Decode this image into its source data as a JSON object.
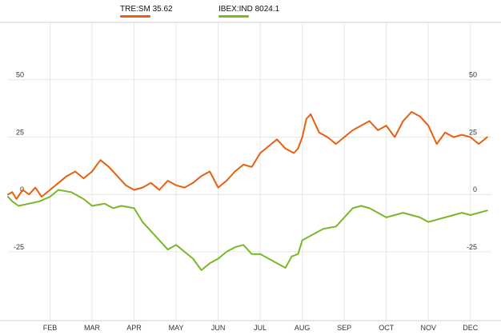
{
  "legend": [
    {
      "symbol": "TRE:SM",
      "value": "35.62",
      "color": "#e8600f"
    },
    {
      "symbol": "IBEX:IND",
      "value": "8024.1",
      "color": "#7ab827"
    }
  ],
  "chart_data": {
    "type": "line",
    "title": "",
    "xlabel": "",
    "ylabel": "",
    "unit": "%",
    "ylim": [
      -55,
      75
    ],
    "yticks": [
      50,
      25,
      0,
      -25
    ],
    "months": [
      "FEB",
      "MAR",
      "APR",
      "MAY",
      "JUN",
      "JUL",
      "AUG",
      "SEP",
      "OCT",
      "NOV",
      "DEC"
    ],
    "month_positions": [
      1,
      2,
      3,
      4,
      5,
      6,
      7,
      8,
      9,
      10,
      11
    ],
    "xlim": [
      0,
      11.5
    ],
    "grid": true,
    "legend_position": "top",
    "series": [
      {
        "name": "TRE:SM",
        "color": "#e8600f",
        "x": [
          0,
          0.1,
          0.2,
          0.35,
          0.5,
          0.65,
          0.8,
          1.0,
          1.2,
          1.4,
          1.6,
          1.8,
          2.0,
          2.2,
          2.4,
          2.6,
          2.8,
          3.0,
          3.2,
          3.4,
          3.6,
          3.8,
          4.0,
          4.2,
          4.4,
          4.6,
          4.8,
          5.0,
          5.2,
          5.4,
          5.6,
          5.8,
          6.0,
          6.2,
          6.4,
          6.6,
          6.8,
          6.9,
          7.0,
          7.1,
          7.2,
          7.4,
          7.6,
          7.8,
          8.0,
          8.2,
          8.4,
          8.6,
          8.8,
          9.0,
          9.2,
          9.4,
          9.6,
          9.8,
          10.0,
          10.2,
          10.4,
          10.6,
          10.8,
          11.0,
          11.2,
          11.4
        ],
        "y": [
          0,
          1,
          -2,
          2,
          0,
          3,
          -1,
          2,
          5,
          8,
          10,
          7,
          10,
          15,
          12,
          8,
          4,
          2,
          3,
          5,
          2,
          6,
          4,
          3,
          5,
          8,
          10,
          3,
          6,
          10,
          13,
          12,
          18,
          21,
          24,
          20,
          18,
          20,
          25,
          33,
          35,
          27,
          25,
          22,
          25,
          28,
          30,
          32,
          28,
          30,
          25,
          32,
          36,
          34,
          30,
          22,
          27,
          25,
          26,
          25,
          22,
          25
        ]
      },
      {
        "name": "IBEX:IND",
        "color": "#7ab827",
        "x": [
          0,
          0.1,
          0.25,
          0.5,
          0.75,
          1.0,
          1.2,
          1.5,
          1.8,
          2.0,
          2.3,
          2.5,
          2.7,
          3.0,
          3.2,
          3.4,
          3.6,
          3.8,
          4.0,
          4.2,
          4.4,
          4.6,
          4.8,
          5.0,
          5.2,
          5.4,
          5.6,
          5.8,
          6.0,
          6.2,
          6.4,
          6.6,
          6.75,
          6.9,
          7.0,
          7.2,
          7.5,
          7.8,
          8.0,
          8.2,
          8.4,
          8.6,
          8.8,
          9.0,
          9.2,
          9.4,
          9.6,
          9.8,
          10.0,
          10.2,
          10.4,
          10.6,
          10.8,
          11.0,
          11.2,
          11.4
        ],
        "y": [
          -1,
          -3,
          -5,
          -4,
          -3,
          -1,
          2,
          1,
          -2,
          -5,
          -4,
          -6,
          -5,
          -6,
          -12,
          -16,
          -20,
          -24,
          -22,
          -25,
          -28,
          -33,
          -30,
          -28,
          -25,
          -23,
          -22,
          -26,
          -26,
          -28,
          -30,
          -32,
          -27,
          -26,
          -20,
          -18,
          -15,
          -14,
          -10,
          -6,
          -5,
          -6,
          -8,
          -10,
          -9,
          -8,
          -9,
          -10,
          -12,
          -11,
          -10,
          -9,
          -8,
          -9,
          -8,
          -7
        ]
      }
    ]
  }
}
